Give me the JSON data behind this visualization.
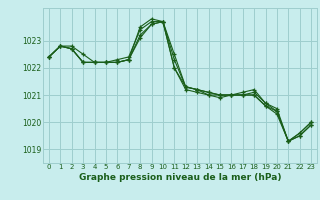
{
  "title": "Graphe pression niveau de la mer (hPa)",
  "background_color": "#c8eded",
  "grid_color": "#9ecece",
  "line_color": "#1a5e1a",
  "xlim": [
    -0.5,
    23.5
  ],
  "ylim": [
    1018.5,
    1024.2
  ],
  "yticks": [
    1019,
    1020,
    1021,
    1022,
    1023
  ],
  "xticks": [
    0,
    1,
    2,
    3,
    4,
    5,
    6,
    7,
    8,
    9,
    10,
    11,
    12,
    13,
    14,
    15,
    16,
    17,
    18,
    19,
    20,
    21,
    22,
    23
  ],
  "series": [
    [
      1022.4,
      1022.8,
      1022.8,
      1022.5,
      1022.2,
      1022.2,
      1022.2,
      1022.3,
      1023.5,
      1023.8,
      1023.7,
      1022.5,
      1021.3,
      1021.2,
      1021.1,
      1021.0,
      1021.0,
      1021.1,
      1021.2,
      1020.7,
      1020.4,
      1019.3,
      1019.6,
      1020.0
    ],
    [
      1022.4,
      1022.8,
      1022.7,
      1022.2,
      1022.2,
      1022.2,
      1022.2,
      1022.3,
      1023.2,
      1023.6,
      1023.7,
      1022.0,
      1021.3,
      1021.2,
      1021.0,
      1021.0,
      1021.0,
      1021.0,
      1021.0,
      1020.6,
      1020.4,
      1019.3,
      1019.5,
      1019.9
    ],
    [
      1022.4,
      1022.8,
      1022.7,
      1022.2,
      1022.2,
      1022.2,
      1022.3,
      1022.4,
      1023.4,
      1023.7,
      1023.7,
      1022.3,
      1021.3,
      1021.2,
      1021.1,
      1021.0,
      1021.0,
      1021.0,
      1021.1,
      1020.7,
      1020.5,
      1019.3,
      1019.6,
      1020.0
    ],
    [
      1022.4,
      1022.8,
      1022.7,
      1022.2,
      1022.2,
      1022.2,
      1022.2,
      1022.3,
      1023.1,
      1023.6,
      1023.7,
      1022.0,
      1021.2,
      1021.1,
      1021.0,
      1020.9,
      1021.0,
      1021.0,
      1021.0,
      1020.6,
      1020.3,
      1019.3,
      1019.5,
      1019.9
    ]
  ]
}
